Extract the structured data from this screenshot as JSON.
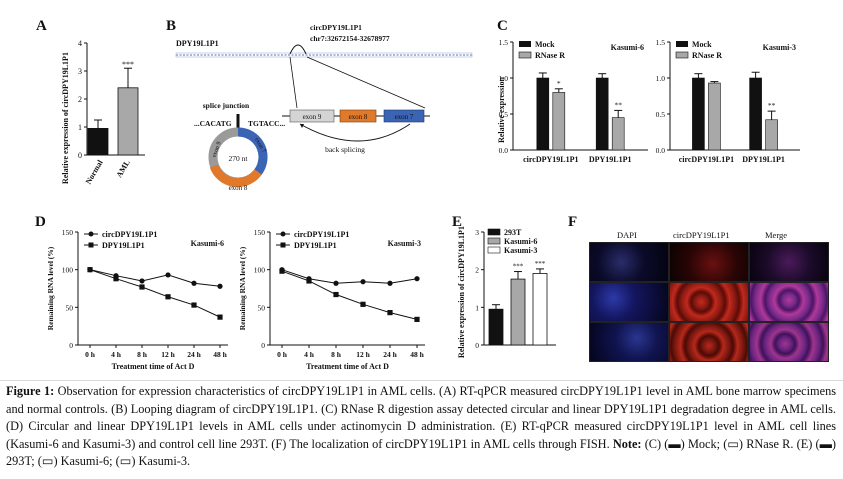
{
  "panels": {
    "A": "A",
    "B": "B",
    "C": "C",
    "D": "D",
    "E": "E",
    "F": "F"
  },
  "panelA": {
    "ylabel": "Relative expression of circDPY19L1P1",
    "yticks": [
      "0",
      "1",
      "2",
      "3",
      "4"
    ],
    "categories": [
      "Normal",
      "AML"
    ],
    "sig": "***"
  },
  "panelB": {
    "gene": "DPY19L1P1",
    "circ_name": "circDPY19L1P1",
    "locus": "chr7:32672154-32678977",
    "exons": [
      "exon 9",
      "exon 8",
      "exon 7"
    ],
    "back_splicing": "back splicing",
    "splice_junction": "splice junction",
    "seq_left": "...CACATG",
    "seq_right": "TGTACC...",
    "circle_size": "270 nt",
    "circle_exons": [
      "exon 9",
      "exon 8",
      "exon 7"
    ]
  },
  "panelC": {
    "ylabel": "Relative expression",
    "legend": [
      "Mock",
      "RNase R"
    ],
    "yticks": [
      "0.0",
      "0.5",
      "1.0",
      "1.5"
    ],
    "charts": [
      {
        "title": "Kasumi-6",
        "categories": [
          "circDPY19L1P1",
          "DPY19L1P1"
        ],
        "sig": [
          "*",
          "**"
        ]
      },
      {
        "title": "Kasumi-3",
        "categories": [
          "circDPY19L1P1",
          "DPY19L1P1"
        ],
        "sig": [
          "",
          "**"
        ]
      }
    ]
  },
  "panelD": {
    "ylabel": "Remaining RNA level (%)",
    "xlabel": "Treatment time of Act D",
    "legend": [
      "circDPY19L1P1",
      "DPY19L1P1"
    ],
    "xticks": [
      "0 h",
      "4 h",
      "8 h",
      "12 h",
      "24 h",
      "48 h"
    ],
    "yticks": [
      "0",
      "50",
      "100",
      "150"
    ],
    "charts": [
      {
        "title": "Kasumi-6"
      },
      {
        "title": "Kasumi-3"
      }
    ]
  },
  "panelE": {
    "ylabel": "Relative expression of circDPY19L1P1",
    "legend": [
      "293T",
      "Kasumi-6",
      "Kasumi-3"
    ],
    "yticks": [
      "0",
      "1",
      "2",
      "3"
    ],
    "sig": [
      "",
      "***",
      "***"
    ]
  },
  "panelF": {
    "headers": [
      "DAPI",
      "circDPY19L1P1",
      "Merge"
    ]
  },
  "chart_data": [
    {
      "panel": "A",
      "type": "bar",
      "categories": [
        "Normal",
        "AML"
      ],
      "values": [
        0.95,
        2.4
      ],
      "errors": [
        0.3,
        0.7
      ],
      "ylim": [
        0,
        4
      ]
    },
    {
      "panel": "C",
      "type": "bar",
      "title": "Kasumi-6",
      "categories": [
        "circDPY19L1P1",
        "DPY19L1P1"
      ],
      "series": [
        {
          "name": "Mock",
          "values": [
            1.0,
            1.0
          ],
          "errors": [
            0.07,
            0.06
          ]
        },
        {
          "name": "RNase R",
          "values": [
            0.8,
            0.45
          ],
          "errors": [
            0.05,
            0.1
          ]
        }
      ],
      "ylim": [
        0,
        1.5
      ]
    },
    {
      "panel": "C",
      "type": "bar",
      "title": "Kasumi-3",
      "categories": [
        "circDPY19L1P1",
        "DPY19L1P1"
      ],
      "series": [
        {
          "name": "Mock",
          "values": [
            1.0,
            1.0
          ],
          "errors": [
            0.06,
            0.08
          ]
        },
        {
          "name": "RNase R",
          "values": [
            0.93,
            0.42
          ],
          "errors": [
            0.02,
            0.12
          ]
        }
      ],
      "ylim": [
        0,
        1.5
      ]
    },
    {
      "panel": "D",
      "type": "line",
      "title": "Kasumi-6",
      "x": [
        "0 h",
        "4 h",
        "8 h",
        "12 h",
        "24 h",
        "48 h"
      ],
      "series": [
        {
          "name": "circDPY19L1P1",
          "values": [
            100,
            92,
            85,
            93,
            82,
            78
          ]
        },
        {
          "name": "DPY19L1P1",
          "values": [
            100,
            88,
            77,
            64,
            53,
            37
          ]
        }
      ],
      "ylim": [
        0,
        150
      ]
    },
    {
      "panel": "D",
      "type": "line",
      "title": "Kasumi-3",
      "x": [
        "0 h",
        "4 h",
        "8 h",
        "12 h",
        "24 h",
        "48 h"
      ],
      "series": [
        {
          "name": "circDPY19L1P1",
          "values": [
            100,
            88,
            82,
            84,
            82,
            88
          ]
        },
        {
          "name": "DPY19L1P1",
          "values": [
            98,
            85,
            67,
            54,
            43,
            34
          ]
        }
      ],
      "ylim": [
        0,
        150
      ]
    },
    {
      "panel": "E",
      "type": "bar",
      "categories": [
        "293T",
        "Kasumi-6",
        "Kasumi-3"
      ],
      "values": [
        0.95,
        1.75,
        1.9
      ],
      "errors": [
        0.12,
        0.2,
        0.12
      ],
      "ylim": [
        0,
        3
      ]
    }
  ],
  "caption": {
    "figure_label": "Figure 1:",
    "text": "Observation for expression characteristics of circDPY19L1P1 in AML cells. (A) RT-qPCR measured circDPY19L1P1 level in AML bone marrow specimens and normal controls. (B) Looping diagram of circDPY19L1P1. (C) RNase R digestion assay detected circular and linear DPY19L1P1 degradation degree in AML cells. (D) Circular and linear DPY19L1P1 levels in AML cells under actinomycin D administration. (E) RT-qPCR measured circDPY19L1P1 level in AML cell lines (Kasumi-6 and Kasumi-3) and control cell line 293T. (F) The localization of circDPY19L1P1 in AML cells through FISH.",
    "note_label": "Note:",
    "note_text": "(C) (▬) Mock; (▭) RNase R. (E) (▬) 293T; (▭) Kasumi-6; (▭) Kasumi-3."
  }
}
